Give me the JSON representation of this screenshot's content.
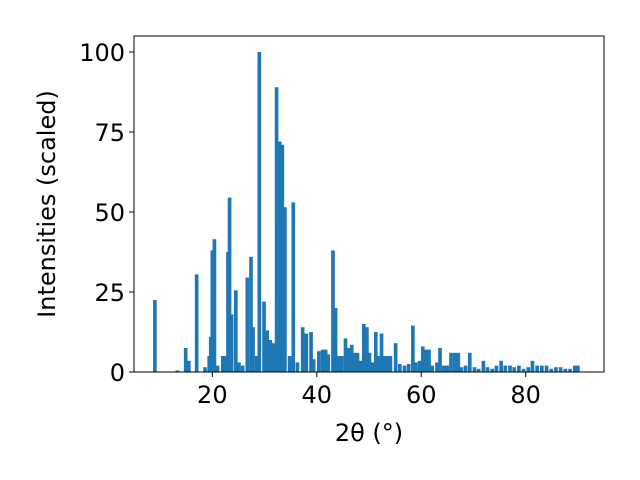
{
  "chart_data": {
    "type": "bar",
    "title": "",
    "xlabel": "2θ (°)",
    "ylabel": "Intensities (scaled)",
    "xlim": [
      5,
      95
    ],
    "ylim": [
      0,
      105
    ],
    "xticks": [
      20,
      40,
      60,
      80
    ],
    "yticks": [
      0,
      25,
      50,
      75,
      100
    ],
    "grid": false,
    "bar_color": "#1f77b4",
    "x": [
      9.0,
      13.3,
      14.9,
      15.5,
      17.0,
      18.6,
      19.4,
      19.7,
      20.0,
      20.4,
      21.0,
      22.0,
      22.5,
      23.0,
      23.3,
      23.7,
      24.5,
      25.1,
      25.8,
      26.7,
      27.4,
      27.8,
      28.5,
      29.0,
      29.9,
      30.5,
      31.1,
      31.7,
      32.3,
      32.9,
      33.4,
      33.9,
      34.8,
      35.5,
      36.3,
      37.3,
      38.0,
      38.9,
      39.4,
      40.4,
      41.1,
      41.7,
      42.2,
      43.1,
      43.6,
      44.2,
      44.8,
      45.5,
      46.1,
      46.7,
      47.2,
      47.8,
      48.4,
      49.0,
      49.6,
      50.1,
      50.7,
      51.3,
      51.8,
      52.4,
      53.0,
      53.6,
      54.1,
      55.1,
      55.9,
      56.8,
      57.6,
      58.4,
      59.0,
      59.7,
      60.3,
      60.9,
      61.5,
      62.1,
      63.0,
      63.6,
      64.3,
      65.0,
      65.7,
      66.4,
      67.1,
      67.7,
      68.5,
      69.3,
      70.2,
      71.0,
      71.9,
      72.7,
      73.6,
      74.4,
      75.3,
      76.1,
      77.0,
      77.8,
      78.7,
      79.6,
      80.5,
      81.3,
      82.2,
      83.1,
      84.0,
      84.9,
      85.8,
      86.7,
      87.6,
      88.5,
      89.4,
      90.0
    ],
    "values": [
      22.5,
      0.5,
      7.5,
      3.5,
      30.5,
      1.5,
      5,
      11,
      38,
      41.5,
      2,
      5,
      5,
      37.5,
      54.5,
      18,
      25.5,
      3,
      2,
      29.5,
      36,
      14,
      5,
      100,
      22,
      13,
      10,
      9,
      89,
      72,
      71,
      51.5,
      5,
      53,
      3,
      14,
      12,
      12.5,
      4,
      6.5,
      7,
      7,
      5.5,
      38,
      20,
      5,
      5,
      10.5,
      7.5,
      8.5,
      6,
      6,
      3.5,
      15,
      14,
      6,
      3,
      12.5,
      5,
      12,
      5,
      5,
      5,
      9,
      2.5,
      2,
      2.5,
      14.5,
      3,
      3.5,
      8,
      7,
      7,
      2,
      3,
      7.5,
      2,
      2,
      6,
      6,
      6,
      1.5,
      2,
      6,
      1.5,
      1,
      3.5,
      1.5,
      1,
      2,
      3.5,
      2,
      2,
      1.5,
      2,
      1,
      1.5,
      3.5,
      2,
      2,
      2,
      1,
      1.5,
      1.5,
      1,
      1,
      2,
      2
    ]
  }
}
